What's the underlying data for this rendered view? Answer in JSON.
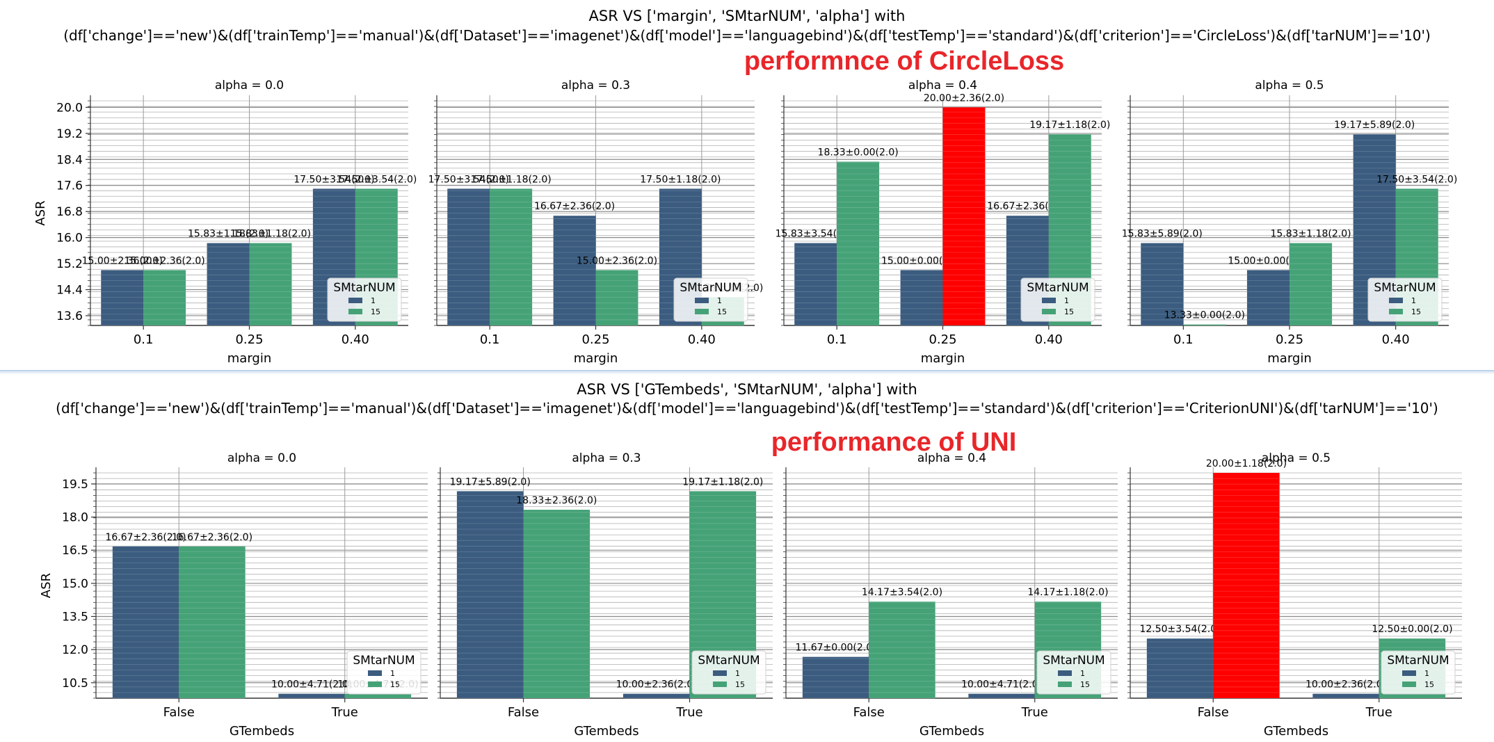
{
  "colors": {
    "series_1": "#3b5c7f",
    "series_15": "#45a277",
    "highlight": "#ff0000",
    "annotation": "#e8262a"
  },
  "chart_data": [
    {
      "type": "bar",
      "title": "ASR VS ['margin', 'SMtarNUM', 'alpha'] with",
      "subtitle": "(df['change']=='new')&(df['trainTemp']=='manual')&(df['Dataset']=='imagenet')&(df['model']=='languagebind')&(df['testTemp']=='standard')&(df['criterion']=='CircleLoss')&(df['tarNUM']=='10')",
      "annotation": "performnce of CircleLoss",
      "xlabel": "margin",
      "ylabel": "ASR",
      "categories": [
        "0.1",
        "0.25",
        "0.40"
      ],
      "ylim": [
        13.3,
        20.2
      ],
      "yticks": [
        "13.6",
        "14.4",
        "15.2",
        "16.0",
        "16.8",
        "17.6",
        "18.4",
        "19.2",
        "20.0"
      ],
      "legend_title": "SMtarNUM",
      "legend_position": "lower right",
      "grid": true,
      "panels": [
        {
          "title": "alpha = 0.0",
          "series": [
            {
              "name": "1",
              "values": [
                15.0,
                15.83,
                17.5
              ],
              "labels": [
                "15.00±2.36(2.0)",
                "15.83±1.18(2.0)",
                "17.50±3.54(2.0)"
              ]
            },
            {
              "name": "15",
              "values": [
                15.0,
                15.83,
                17.5
              ],
              "labels": [
                "15.00±2.36(2.0)",
                "15.83±1.18(2.0)",
                "17.50±3.54(2.0)"
              ]
            }
          ]
        },
        {
          "title": "alpha = 0.3",
          "series": [
            {
              "name": "1",
              "values": [
                17.5,
                16.67,
                17.5
              ],
              "labels": [
                "17.50±3.54(2.0)",
                "16.67±2.36(2.0)",
                "17.50±1.18(2.0)"
              ]
            },
            {
              "name": "15",
              "values": [
                17.5,
                15.0,
                14.17
              ],
              "labels": [
                "17.50±1.18(2.0)",
                "15.00±2.36(2.0)",
                "14.17±1.18(2.0)"
              ]
            }
          ]
        },
        {
          "title": "alpha = 0.4",
          "series": [
            {
              "name": "1",
              "values": [
                15.83,
                15.0,
                16.67
              ],
              "labels": [
                "15.83±3.54(2.0)",
                "15.00±0.00(2.0)",
                "16.67±2.36(2.0)"
              ]
            },
            {
              "name": "15",
              "values": [
                18.33,
                20.0,
                19.17
              ],
              "labels": [
                "18.33±0.00(2.0)",
                "20.00±2.36(2.0)",
                "19.17±1.18(2.0)"
              ],
              "highlight": [
                false,
                true,
                false
              ]
            }
          ]
        },
        {
          "title": "alpha = 0.5",
          "series": [
            {
              "name": "1",
              "values": [
                15.83,
                15.0,
                19.17
              ],
              "labels": [
                "15.83±5.89(2.0)",
                "15.00±0.00(2.0)",
                "19.17±5.89(2.0)"
              ]
            },
            {
              "name": "15",
              "values": [
                13.33,
                15.83,
                17.5
              ],
              "labels": [
                "13.33±0.00(2.0)",
                "15.83±1.18(2.0)",
                "17.50±3.54(2.0)"
              ]
            }
          ]
        }
      ]
    },
    {
      "type": "bar",
      "title": "ASR VS ['GTembeds', 'SMtarNUM', 'alpha'] with",
      "subtitle": "(df['change']=='new')&(df['trainTemp']=='manual')&(df['Dataset']=='imagenet')&(df['model']=='languagebind')&(df['testTemp']=='standard')&(df['criterion']=='CriterionUNI')&(df['tarNUM']=='10')",
      "annotation": "performance of UNI",
      "xlabel": "GTembeds",
      "ylabel": "ASR",
      "categories": [
        "False",
        "True"
      ],
      "ylim": [
        9.8,
        20.0
      ],
      "yticks": [
        "10.5",
        "12.0",
        "13.5",
        "15.0",
        "16.5",
        "18.0",
        "19.5"
      ],
      "legend_title": "SMtarNUM",
      "legend_position": "lower right",
      "grid": true,
      "panels": [
        {
          "title": "alpha = 0.0",
          "series": [
            {
              "name": "1",
              "values": [
                16.67,
                10.0
              ],
              "labels": [
                "16.67±2.36(2.0)",
                "10.00±4.71(2.0)"
              ]
            },
            {
              "name": "15",
              "values": [
                16.67,
                10.0
              ],
              "labels": [
                "16.67±2.36(2.0)",
                "10.00±4.71(2.0)"
              ]
            }
          ]
        },
        {
          "title": "alpha = 0.3",
          "series": [
            {
              "name": "1",
              "values": [
                19.17,
                10.0
              ],
              "labels": [
                "19.17±5.89(2.0)",
                "10.00±2.36(2.0)"
              ]
            },
            {
              "name": "15",
              "values": [
                18.33,
                19.17
              ],
              "labels": [
                "18.33±2.36(2.0)",
                "19.17±1.18(2.0)"
              ]
            }
          ]
        },
        {
          "title": "alpha = 0.4",
          "series": [
            {
              "name": "1",
              "values": [
                11.67,
                10.0
              ],
              "labels": [
                "11.67±0.00(2.0)",
                "10.00±4.71(2.0)"
              ]
            },
            {
              "name": "15",
              "values": [
                14.17,
                14.17
              ],
              "labels": [
                "14.17±3.54(2.0)",
                "14.17±1.18(2.0)"
              ]
            }
          ]
        },
        {
          "title": "alpha = 0.5",
          "series": [
            {
              "name": "1",
              "values": [
                12.5,
                10.0
              ],
              "labels": [
                "12.50±3.54(2.0)",
                "10.00±2.36(2.0)"
              ]
            },
            {
              "name": "15",
              "values": [
                20.0,
                12.5
              ],
              "labels": [
                "20.00±1.18(2.0)",
                "12.50±0.00(2.0)"
              ],
              "highlight": [
                true,
                false
              ]
            }
          ]
        }
      ]
    }
  ]
}
